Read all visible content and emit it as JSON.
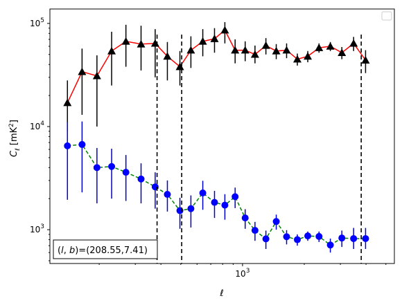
{
  "chart_data": {
    "type": "line",
    "xscale": "log",
    "yscale": "log",
    "xlabel": "ℓ",
    "ylabel_main": "C",
    "ylabel_sub": "ℓ",
    "ylabel_unit": "[mK",
    "ylabel_unit_sup": "2",
    "ylabel_unit_close": "]",
    "xlim": [
      115,
      5500
    ],
    "ylim": [
      470,
      138000
    ],
    "x_ticks": [
      {
        "value": 1000,
        "label": "10",
        "exp": "3"
      }
    ],
    "y_ticks": [
      {
        "value": 1000,
        "label": "10",
        "exp": "3"
      },
      {
        "value": 10000,
        "label": "10",
        "exp": "4"
      },
      {
        "value": 100000,
        "label": "10",
        "exp": "5"
      }
    ],
    "legend": {
      "placement": "top-right",
      "entries": []
    },
    "annotation": "(l,b)=(208.55,7.41)",
    "annotation_parts": {
      "open": "(",
      "l": "l",
      "comma": ", ",
      "b": "b",
      "rest": ")=(208.55,7.41)"
    },
    "vlines": [
      383,
      505,
      3790
    ],
    "series": [
      {
        "color": "#ff0000",
        "linestyle": "solid",
        "marker": "triangle",
        "marker_color": "#000000",
        "errorbar_color": "#000000",
        "points": [
          {
            "x": 140,
            "y": 17000,
            "lo": 9000,
            "hi": 28000
          },
          {
            "x": 165,
            "y": 34000,
            "lo": 13000,
            "hi": 57000
          },
          {
            "x": 195,
            "y": 31000,
            "lo": 10000,
            "hi": 49000
          },
          {
            "x": 230,
            "y": 54000,
            "lo": 25000,
            "hi": 83000
          },
          {
            "x": 270,
            "y": 67000,
            "lo": 38000,
            "hi": 97000
          },
          {
            "x": 320,
            "y": 63000,
            "lo": 35000,
            "hi": 95000
          },
          {
            "x": 375,
            "y": 64000,
            "lo": 30000,
            "hi": 88000
          },
          {
            "x": 430,
            "y": 48000,
            "lo": 28000,
            "hi": 66000
          },
          {
            "x": 495,
            "y": 38000,
            "lo": 25000,
            "hi": 54000
          },
          {
            "x": 560,
            "y": 55000,
            "lo": 37000,
            "hi": 75000
          },
          {
            "x": 640,
            "y": 67000,
            "lo": 48000,
            "hi": 88000
          },
          {
            "x": 730,
            "y": 71000,
            "lo": 52000,
            "hi": 90000
          },
          {
            "x": 820,
            "y": 86000,
            "lo": 64000,
            "hi": 103000
          },
          {
            "x": 920,
            "y": 55000,
            "lo": 41000,
            "hi": 70000
          },
          {
            "x": 1030,
            "y": 55000,
            "lo": 43000,
            "hi": 67000
          },
          {
            "x": 1150,
            "y": 50000,
            "lo": 41000,
            "hi": 61000
          },
          {
            "x": 1300,
            "y": 61000,
            "lo": 50000,
            "hi": 72000
          },
          {
            "x": 1460,
            "y": 54000,
            "lo": 45000,
            "hi": 63000
          },
          {
            "x": 1640,
            "y": 55000,
            "lo": 46000,
            "hi": 64000
          },
          {
            "x": 1850,
            "y": 45000,
            "lo": 39000,
            "hi": 51000
          },
          {
            "x": 2080,
            "y": 48000,
            "lo": 42000,
            "hi": 54000
          },
          {
            "x": 2360,
            "y": 58000,
            "lo": 52000,
            "hi": 64000
          },
          {
            "x": 2680,
            "y": 60000,
            "lo": 54000,
            "hi": 66000
          },
          {
            "x": 3050,
            "y": 52000,
            "lo": 45000,
            "hi": 59000
          },
          {
            "x": 3480,
            "y": 64000,
            "lo": 54000,
            "hi": 74000
          },
          {
            "x": 3980,
            "y": 44000,
            "lo": 33000,
            "hi": 55000
          }
        ]
      },
      {
        "color": "#008000",
        "linestyle": "dashed",
        "marker": "circle",
        "marker_color": "#0000ff",
        "errorbar_color": "#0000cc",
        "points": [
          {
            "x": 140,
            "y": 6500,
            "lo": 1950,
            "hi": 11000
          },
          {
            "x": 165,
            "y": 6700,
            "lo": 2300,
            "hi": 11200
          },
          {
            "x": 195,
            "y": 4000,
            "lo": 1800,
            "hi": 6200
          },
          {
            "x": 230,
            "y": 4100,
            "lo": 2000,
            "hi": 6100
          },
          {
            "x": 270,
            "y": 3600,
            "lo": 1900,
            "hi": 5300
          },
          {
            "x": 320,
            "y": 3100,
            "lo": 1800,
            "hi": 4400
          },
          {
            "x": 375,
            "y": 2600,
            "lo": 1600,
            "hi": 3600
          },
          {
            "x": 430,
            "y": 2200,
            "lo": 1500,
            "hi": 3000
          },
          {
            "x": 495,
            "y": 1530,
            "lo": 1020,
            "hi": 2040
          },
          {
            "x": 560,
            "y": 1600,
            "lo": 1050,
            "hi": 2150
          },
          {
            "x": 640,
            "y": 2270,
            "lo": 1560,
            "hi": 2980
          },
          {
            "x": 730,
            "y": 1840,
            "lo": 1300,
            "hi": 2380
          },
          {
            "x": 820,
            "y": 1730,
            "lo": 1250,
            "hi": 2210
          },
          {
            "x": 920,
            "y": 2090,
            "lo": 1620,
            "hi": 2560
          },
          {
            "x": 1030,
            "y": 1300,
            "lo": 1020,
            "hi": 1580
          },
          {
            "x": 1150,
            "y": 985,
            "lo": 780,
            "hi": 1190
          },
          {
            "x": 1300,
            "y": 815,
            "lo": 650,
            "hi": 980
          },
          {
            "x": 1460,
            "y": 1200,
            "lo": 1000,
            "hi": 1400
          },
          {
            "x": 1640,
            "y": 855,
            "lo": 720,
            "hi": 990
          },
          {
            "x": 1850,
            "y": 800,
            "lo": 700,
            "hi": 900
          },
          {
            "x": 2080,
            "y": 870,
            "lo": 780,
            "hi": 960
          },
          {
            "x": 2360,
            "y": 860,
            "lo": 760,
            "hi": 960
          },
          {
            "x": 2680,
            "y": 710,
            "lo": 600,
            "hi": 820
          },
          {
            "x": 3050,
            "y": 830,
            "lo": 680,
            "hi": 980
          },
          {
            "x": 3480,
            "y": 820,
            "lo": 650,
            "hi": 1040
          },
          {
            "x": 3980,
            "y": 820,
            "lo": 650,
            "hi": 1040
          }
        ]
      }
    ]
  }
}
